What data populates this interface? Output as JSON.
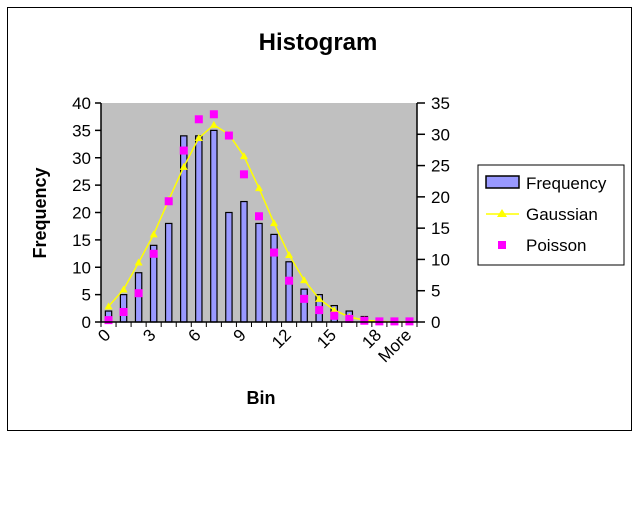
{
  "chart_data": {
    "type": "bar",
    "title": "Histogram",
    "xlabel": "Bin",
    "ylabel": "Frequency",
    "categories": [
      "0",
      "1",
      "2",
      "3",
      "4",
      "5",
      "6",
      "7",
      "8",
      "9",
      "10",
      "11",
      "12",
      "13",
      "14",
      "15",
      "16",
      "17",
      "18",
      "19",
      "More"
    ],
    "x_tick_labels": [
      "0",
      "3",
      "6",
      "9",
      "12",
      "15",
      "18",
      "More"
    ],
    "ylim": [
      0,
      40
    ],
    "y_ticks": [
      0,
      5,
      10,
      15,
      20,
      25,
      30,
      35,
      40
    ],
    "y2lim": [
      0,
      35
    ],
    "y2_ticks": [
      0,
      5,
      10,
      15,
      20,
      25,
      30,
      35
    ],
    "grid": false,
    "legend_position": "right",
    "plot_background": "#c0c0c0",
    "series": [
      {
        "name": "Frequency",
        "type": "bar",
        "axis": "left",
        "color": "#9999ff",
        "values": [
          2,
          5,
          9,
          14,
          18,
          34,
          34,
          35,
          20,
          22,
          18,
          16,
          11,
          6,
          5,
          3,
          2,
          1,
          0,
          0,
          0
        ]
      },
      {
        "name": "Gaussian",
        "type": "line",
        "axis": "right",
        "color": "#ffff00",
        "values": [
          2.5,
          5.2,
          9.5,
          14,
          19.5,
          24.8,
          29.4,
          31.5,
          30,
          26.5,
          21.4,
          15.8,
          10.7,
          6.7,
          3.7,
          1.9,
          0.8,
          0.3,
          0.1,
          0,
          0
        ]
      },
      {
        "name": "Poisson",
        "type": "scatter",
        "axis": "right",
        "color": "#ff00ff",
        "values": [
          0.3,
          1.6,
          4.6,
          10.9,
          19.3,
          27.4,
          32.4,
          33.2,
          29.8,
          23.6,
          16.9,
          11.1,
          6.6,
          3.7,
          1.9,
          1.0,
          0.5,
          0.2,
          0.1,
          0.1,
          0.1
        ]
      }
    ]
  }
}
